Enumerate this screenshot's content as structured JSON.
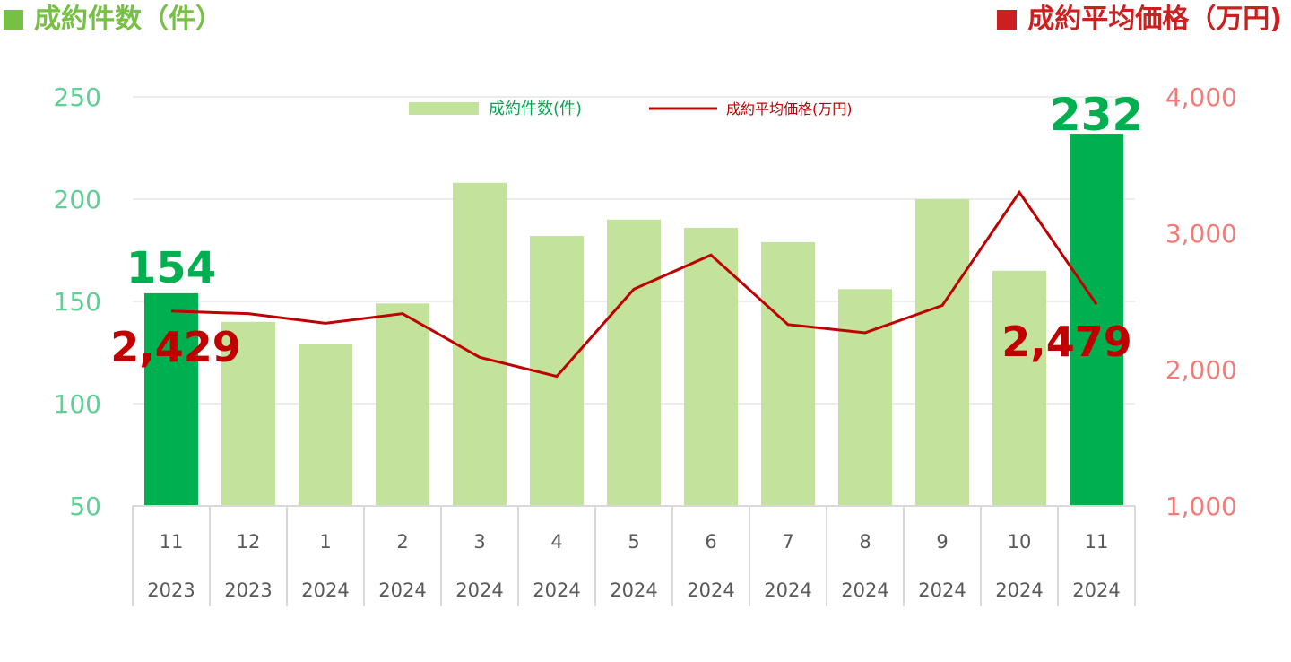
{
  "header": {
    "left_title": "成約件数（件）",
    "right_title": "成約平均価格（万円)"
  },
  "colors": {
    "bar": "#c3e39c",
    "bar_highlight": "#00b050",
    "line": "#c00000",
    "left_axis": "#5fcf95",
    "right_axis": "#f47a7a",
    "grid": "#d9d9d9",
    "header_green": "#76c043",
    "header_red": "#cc1f1f"
  },
  "chart_data": {
    "type": "bar+line",
    "categories": [
      {
        "month": "11",
        "year": "2023"
      },
      {
        "month": "12",
        "year": "2023"
      },
      {
        "month": "1",
        "year": "2024"
      },
      {
        "month": "2",
        "year": "2024"
      },
      {
        "month": "3",
        "year": "2024"
      },
      {
        "month": "4",
        "year": "2024"
      },
      {
        "month": "5",
        "year": "2024"
      },
      {
        "month": "6",
        "year": "2024"
      },
      {
        "month": "7",
        "year": "2024"
      },
      {
        "month": "8",
        "year": "2024"
      },
      {
        "month": "9",
        "year": "2024"
      },
      {
        "month": "10",
        "year": "2024"
      },
      {
        "month": "11",
        "year": "2024"
      }
    ],
    "series": [
      {
        "name": "成約件数(件)",
        "type": "bar",
        "axis": "left",
        "values": [
          154,
          140,
          129,
          149,
          208,
          182,
          190,
          186,
          179,
          156,
          200,
          165,
          232
        ]
      },
      {
        "name": "成約平均価格(万円)",
        "type": "line",
        "axis": "right",
        "values": [
          2429,
          2410,
          2340,
          2410,
          2090,
          1950,
          2590,
          2840,
          2330,
          2270,
          2470,
          3300,
          2479
        ]
      }
    ],
    "highlighted_bars": [
      0,
      12
    ],
    "left_axis": {
      "ylim": [
        50,
        250
      ],
      "ticks": [
        "50",
        "100",
        "150",
        "200",
        "250"
      ]
    },
    "right_axis": {
      "ylim": [
        1000,
        4000
      ],
      "ticks": [
        "1,000",
        "2,000",
        "3,000",
        "4,000"
      ]
    },
    "annotations": {
      "bar_first": "154",
      "bar_last": "232",
      "line_first": "2,429",
      "line_last": "2,479"
    },
    "legend": {
      "position": "top-center"
    },
    "grid": true
  }
}
